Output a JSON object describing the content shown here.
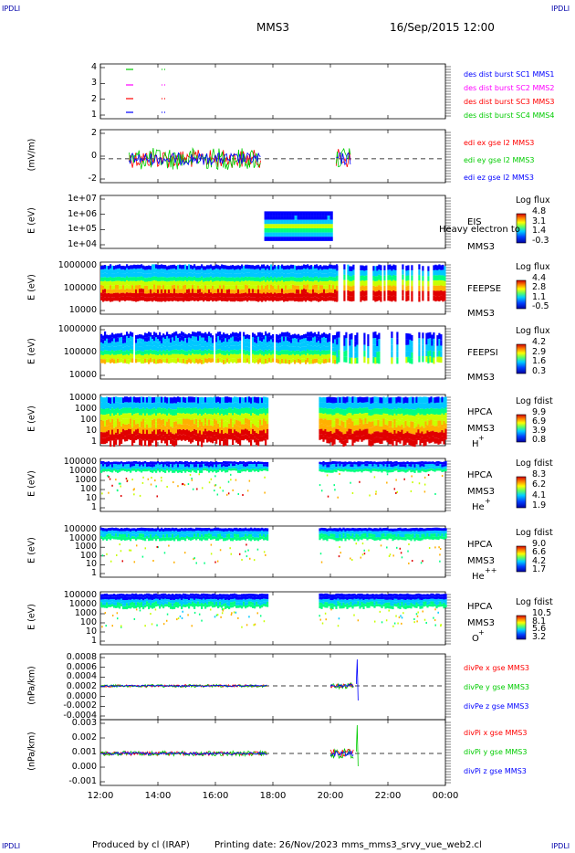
{
  "corners": {
    "label": "IPDLI"
  },
  "header": {
    "spacecraft": "MMS3",
    "date": "16/Sep/2015 12:00"
  },
  "footer": {
    "produced": "Produced by cl (IRAP)",
    "printing": "Printing date: 26/Nov/2023",
    "file": "mms_mms3_srvy_vue_web2.cl"
  },
  "chart_data": {
    "type": "multi-panel time series / spectrogram",
    "x_axis": {
      "ticks": [
        "12:00",
        "14:00",
        "16:00",
        "18:00",
        "20:00",
        "22:00",
        "00:00"
      ],
      "range_hours": [
        12,
        24
      ]
    },
    "panels": [
      {
        "id": "burst",
        "type": "scatter",
        "ylabel": "",
        "yticks": [
          "4",
          "3",
          "2",
          "1"
        ],
        "legend": [
          {
            "name": "des dist burst SC1 MMS1",
            "color": "#0000ff"
          },
          {
            "name": "des dist burst SC2 MMS2",
            "color": "#ff00ff"
          },
          {
            "name": "des dist burst SC3 MMS3",
            "color": "#ff0000"
          },
          {
            "name": "des dist burst SC4 MMS4",
            "color": "#00cc00"
          }
        ]
      },
      {
        "id": "edi",
        "type": "line",
        "ylabel": "(mV/m)",
        "yticks": [
          "2",
          "0",
          "-2"
        ],
        "legend": [
          {
            "name": "edi ex gse l2 MMS3",
            "color": "#ff0000"
          },
          {
            "name": "edi ey gse l2 MMS3",
            "color": "#00cc00"
          },
          {
            "name": "edi ez gse l2 MMS3",
            "color": "#0000ff"
          }
        ]
      },
      {
        "id": "eis",
        "type": "heatmap",
        "ylabel": "E (eV)",
        "yticks": [
          "1e+07",
          "1e+06",
          "1e+05",
          "1e+04"
        ],
        "side": [
          "EIS",
          "MMS3"
        ],
        "overlay": "Heavy electron to",
        "cb_title": "Log flux",
        "cb_values": [
          "4.8",
          "3.1",
          "1.4",
          "-0.3"
        ]
      },
      {
        "id": "feeps_e",
        "type": "heatmap",
        "ylabel": "E (eV)",
        "yticks": [
          "1000000",
          "100000",
          "10000"
        ],
        "side": [
          "FEEPSE",
          "MMS3"
        ],
        "cb_title": "Log flux",
        "cb_values": [
          "4.4",
          "2.8",
          "1.1",
          "-0.5"
        ]
      },
      {
        "id": "feeps_i",
        "type": "heatmap",
        "ylabel": "E (eV)",
        "yticks": [
          "1000000",
          "100000",
          "10000"
        ],
        "side": [
          "FEEPSI",
          "MMS3"
        ],
        "cb_title": "Log flux",
        "cb_values": [
          "4.2",
          "2.9",
          "1.6",
          "0.3"
        ]
      },
      {
        "id": "hpca_h",
        "type": "heatmap",
        "ylabel": "E (eV)",
        "yticks": [
          "10000",
          "1000",
          "100",
          "10",
          "1"
        ],
        "side": [
          "HPCA",
          "MMS3",
          "H",
          "+"
        ],
        "cb_title": "Log fdist",
        "cb_values": [
          "9.9",
          "6.9",
          "3.9",
          "0.8"
        ]
      },
      {
        "id": "hpca_he1",
        "type": "heatmap",
        "ylabel": "E (eV)",
        "yticks": [
          "100000",
          "10000",
          "1000",
          "100",
          "10",
          "1"
        ],
        "side": [
          "HPCA",
          "MMS3",
          "He",
          "+"
        ],
        "cb_title": "Log fdist",
        "cb_values": [
          "8.3",
          "6.2",
          "4.1",
          "1.9"
        ]
      },
      {
        "id": "hpca_he2",
        "type": "heatmap",
        "ylabel": "E (eV)",
        "yticks": [
          "100000",
          "10000",
          "1000",
          "100",
          "10",
          "1"
        ],
        "side": [
          "HPCA",
          "MMS3",
          "He",
          "++"
        ],
        "cb_title": "Log fdist",
        "cb_values": [
          "9.0",
          "6.6",
          "4.2",
          "1.7"
        ]
      },
      {
        "id": "hpca_o",
        "type": "heatmap",
        "ylabel": "E (eV)",
        "yticks": [
          "100000",
          "10000",
          "1000",
          "100",
          "10",
          "1"
        ],
        "side": [
          "HPCA",
          "MMS3",
          "O",
          "+"
        ],
        "cb_title": "Log fdist",
        "cb_values": [
          "10.5",
          "8.1",
          "5.6",
          "3.2"
        ]
      },
      {
        "id": "divpe",
        "type": "line",
        "ylabel": "(nPa/km)",
        "yticks": [
          "0.0008",
          "0.0006",
          "0.0004",
          "0.0002",
          "0.0000",
          "-0.0002",
          "-0.0004"
        ],
        "legend": [
          {
            "name": "divPe x gse MMS3",
            "color": "#ff0000"
          },
          {
            "name": "divPe y gse MMS3",
            "color": "#00cc00"
          },
          {
            "name": "divPe z gse MMS3",
            "color": "#0000ff"
          }
        ]
      },
      {
        "id": "divpi",
        "type": "line",
        "ylabel": "(nPa/km)",
        "yticks": [
          "0.003",
          "0.002",
          "0.001",
          "0.000",
          "-0.001"
        ],
        "legend": [
          {
            "name": "divPi x gse MMS3",
            "color": "#ff0000"
          },
          {
            "name": "divPi y gse MMS3",
            "color": "#00cc00"
          },
          {
            "name": "divPi z gse MMS3",
            "color": "#0000ff"
          }
        ]
      }
    ]
  }
}
